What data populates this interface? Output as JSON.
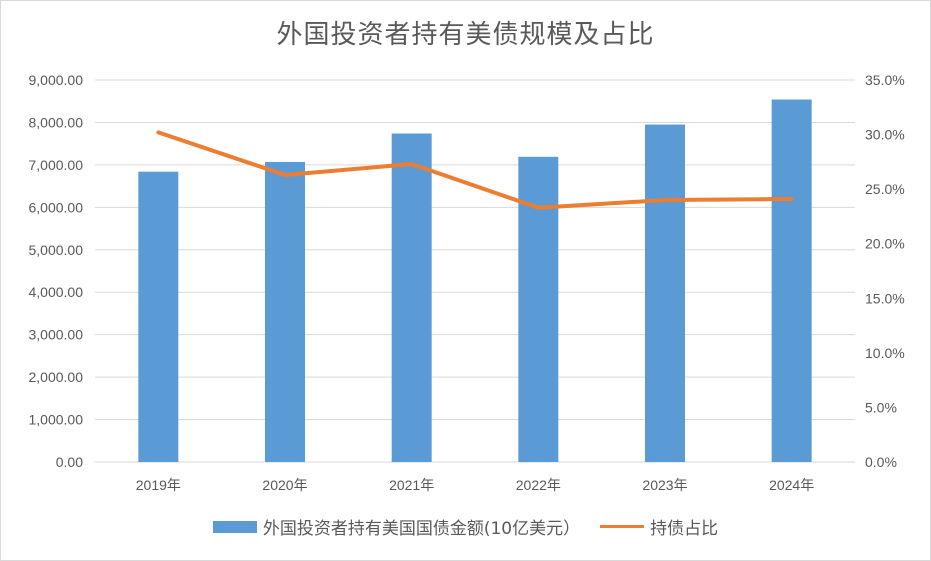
{
  "chart_data": {
    "type": "bar",
    "title": "外国投资者持有美债规模及占比",
    "categories": [
      "2019年",
      "2020年",
      "2021年",
      "2022年",
      "2023年",
      "2024年"
    ],
    "series": [
      {
        "name": "外国投资者持有美国国债金额(10亿美元）",
        "type": "bar",
        "axis": "left",
        "color": "#5b9bd5",
        "values": [
          6840,
          7070,
          7740,
          7190,
          7950,
          8540
        ]
      },
      {
        "name": "持债占比",
        "type": "line",
        "axis": "right",
        "color": "#ed7d31",
        "values": [
          30.2,
          26.3,
          27.3,
          23.3,
          24.0,
          24.1
        ]
      }
    ],
    "y_left": {
      "min": 0,
      "max": 9000,
      "ticks": [
        "0.00",
        "1,000.00",
        "2,000.00",
        "3,000.00",
        "4,000.00",
        "5,000.00",
        "6,000.00",
        "7,000.00",
        "8,000.00",
        "9,000.00"
      ]
    },
    "y_right": {
      "min": 0,
      "max": 35,
      "ticks": [
        "0.0%",
        "5.0%",
        "10.0%",
        "15.0%",
        "20.0%",
        "25.0%",
        "30.0%",
        "35.0%"
      ]
    },
    "grid": true,
    "legend_position": "bottom"
  }
}
